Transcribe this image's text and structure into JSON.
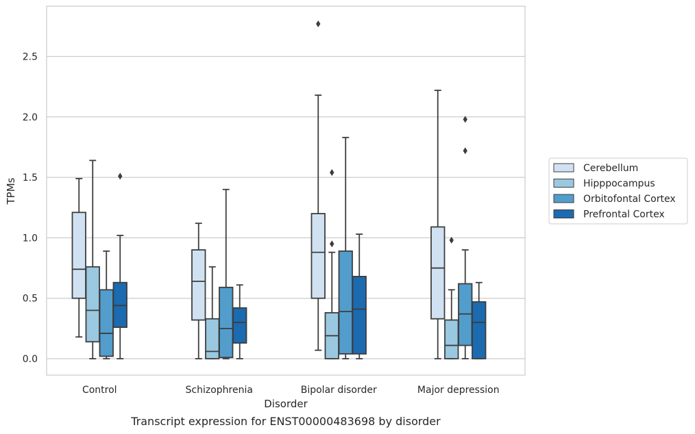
{
  "chart_data": {
    "type": "box",
    "caption": "Transcript expression for ENST00000483698 by disorder",
    "xlabel": "Disorder",
    "ylabel": "TPMs",
    "ylim": [
      -0.14,
      2.92
    ],
    "yticks": [
      "0.0",
      "0.5",
      "1.0",
      "1.5",
      "2.0",
      "2.5"
    ],
    "grid": "horizontal",
    "legend_position": "right",
    "categories": [
      "Control",
      "Schizophrenia",
      "Bipolar disorder",
      "Major depression"
    ],
    "series": [
      {
        "name": "Cerebellum",
        "color": "#d0e2f2",
        "boxes": [
          {
            "whisker_low": 0.18,
            "q1": 0.5,
            "median": 0.74,
            "q3": 1.21,
            "whisker_high": 1.49,
            "outliers": []
          },
          {
            "whisker_low": 0.0,
            "q1": 0.32,
            "median": 0.64,
            "q3": 0.9,
            "whisker_high": 1.12,
            "outliers": []
          },
          {
            "whisker_low": 0.07,
            "q1": 0.5,
            "median": 0.88,
            "q3": 1.2,
            "whisker_high": 2.18,
            "outliers": [
              2.77
            ]
          },
          {
            "whisker_low": 0.0,
            "q1": 0.33,
            "median": 0.75,
            "q3": 1.09,
            "whisker_high": 2.22,
            "outliers": []
          }
        ]
      },
      {
        "name": "Hipppocampus",
        "color": "#9ac8e0",
        "boxes": [
          {
            "whisker_low": 0.0,
            "q1": 0.14,
            "median": 0.4,
            "q3": 0.76,
            "whisker_high": 1.64,
            "outliers": []
          },
          {
            "whisker_low": 0.0,
            "q1": 0.0,
            "median": 0.06,
            "q3": 0.33,
            "whisker_high": 0.76,
            "outliers": []
          },
          {
            "whisker_low": 0.0,
            "q1": 0.0,
            "median": 0.19,
            "q3": 0.38,
            "whisker_high": 0.88,
            "outliers": [
              0.95,
              1.54
            ]
          },
          {
            "whisker_low": 0.0,
            "q1": 0.0,
            "median": 0.11,
            "q3": 0.32,
            "whisker_high": 0.57,
            "outliers": [
              0.98
            ]
          }
        ]
      },
      {
        "name": "Orbitofontal Cortex",
        "color": "#529dcc",
        "boxes": [
          {
            "whisker_low": 0.0,
            "q1": 0.02,
            "median": 0.21,
            "q3": 0.57,
            "whisker_high": 0.89,
            "outliers": []
          },
          {
            "whisker_low": 0.0,
            "q1": 0.01,
            "median": 0.25,
            "q3": 0.59,
            "whisker_high": 1.4,
            "outliers": []
          },
          {
            "whisker_low": 0.0,
            "q1": 0.04,
            "median": 0.39,
            "q3": 0.89,
            "whisker_high": 1.83,
            "outliers": []
          },
          {
            "whisker_low": 0.0,
            "q1": 0.11,
            "median": 0.37,
            "q3": 0.62,
            "whisker_high": 0.9,
            "outliers": [
              1.72,
              1.98
            ]
          }
        ]
      },
      {
        "name": "Prefrontal Cortex",
        "color": "#1c6aaf",
        "boxes": [
          {
            "whisker_low": 0.0,
            "q1": 0.26,
            "median": 0.44,
            "q3": 0.63,
            "whisker_high": 1.02,
            "outliers": [
              1.51
            ]
          },
          {
            "whisker_low": 0.0,
            "q1": 0.13,
            "median": 0.3,
            "q3": 0.42,
            "whisker_high": 0.61,
            "outliers": []
          },
          {
            "whisker_low": 0.0,
            "q1": 0.04,
            "median": 0.41,
            "q3": 0.68,
            "whisker_high": 1.03,
            "outliers": []
          },
          {
            "whisker_low": 0.0,
            "q1": 0.0,
            "median": 0.3,
            "q3": 0.47,
            "whisker_high": 0.63,
            "outliers": []
          }
        ]
      }
    ]
  }
}
